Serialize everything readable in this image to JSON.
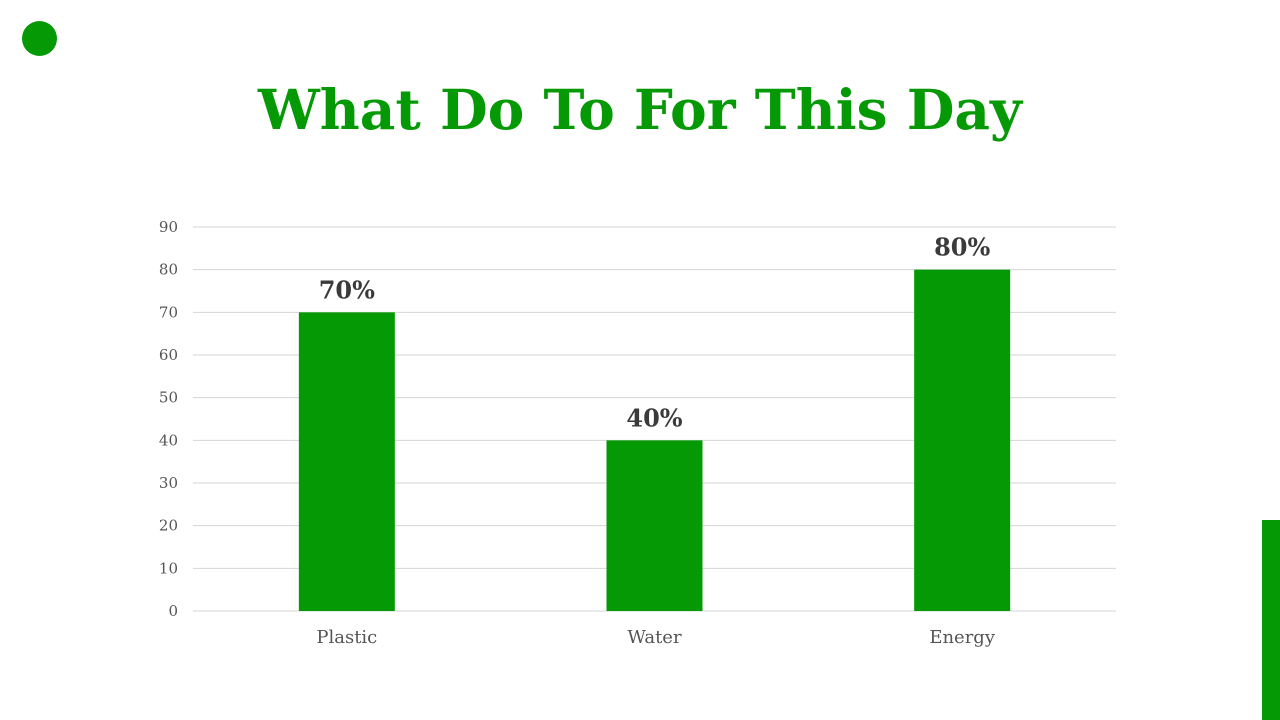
{
  "slide": {
    "title": "What Do To For This Day"
  },
  "colors": {
    "accent": "#059905",
    "grid": "#d4d4d4",
    "label": "#555555",
    "data_label": "#3a3a3a"
  },
  "decorations": {
    "top_left": "green-circle",
    "right_edge": "green-vertical-bar"
  },
  "chart_data": {
    "type": "bar",
    "title": "",
    "xlabel": "",
    "ylabel": "",
    "categories": [
      "Plastic",
      "Water",
      "Energy"
    ],
    "values": [
      70,
      40,
      80
    ],
    "data_labels": [
      "70%",
      "40%",
      "80%"
    ],
    "ylim": [
      0,
      90
    ],
    "yticks": [
      0,
      10,
      20,
      30,
      40,
      50,
      60,
      70,
      80,
      90
    ],
    "grid": true,
    "legend": "none"
  }
}
